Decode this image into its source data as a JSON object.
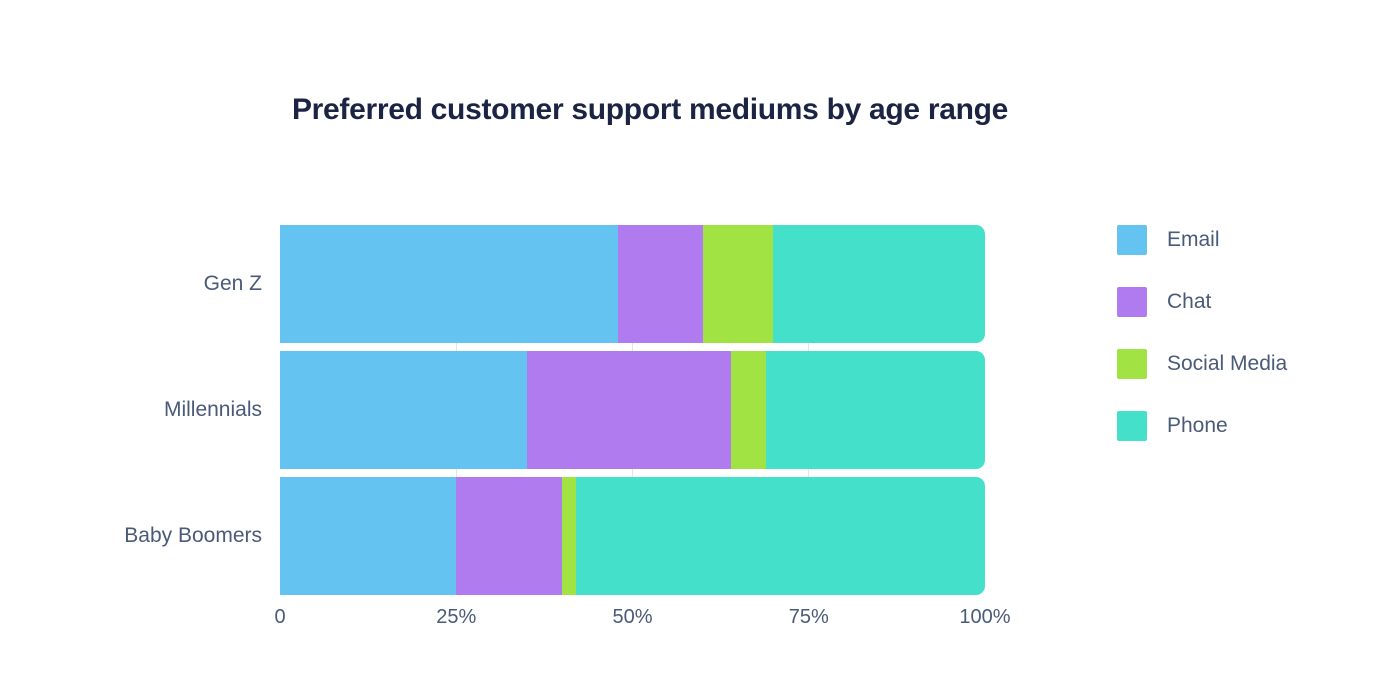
{
  "page": {
    "background": "#ffffff"
  },
  "chart_data": {
    "type": "bar",
    "orientation": "horizontal",
    "stacked": true,
    "title": "Preferred customer support mediums by age range",
    "title_color": "#1c2444",
    "categories": [
      "Gen Z",
      "Millennials",
      "Baby Boomers"
    ],
    "series": [
      {
        "name": "Email",
        "color": "#64c3f0",
        "values": [
          48,
          35,
          25
        ]
      },
      {
        "name": "Chat",
        "color": "#af7bee",
        "values": [
          12,
          29,
          15
        ]
      },
      {
        "name": "Social Media",
        "color": "#a0e342",
        "values": [
          10,
          5,
          2
        ]
      },
      {
        "name": "Phone",
        "color": "#44e0ca",
        "values": [
          30,
          31,
          58
        ]
      }
    ],
    "xlim": [
      0,
      100
    ],
    "x_ticks": [
      {
        "value": 0,
        "label": "0"
      },
      {
        "value": 25,
        "label": "25%"
      },
      {
        "value": 50,
        "label": "50%"
      },
      {
        "value": 75,
        "label": "75%"
      },
      {
        "value": 100,
        "label": "100%"
      }
    ],
    "gridline_values": [
      25,
      50,
      75
    ],
    "grid": "vertical-light",
    "gridline_color": "#e3e3ea",
    "axis_text_color": "#4a5a78",
    "legend_position": "right"
  }
}
